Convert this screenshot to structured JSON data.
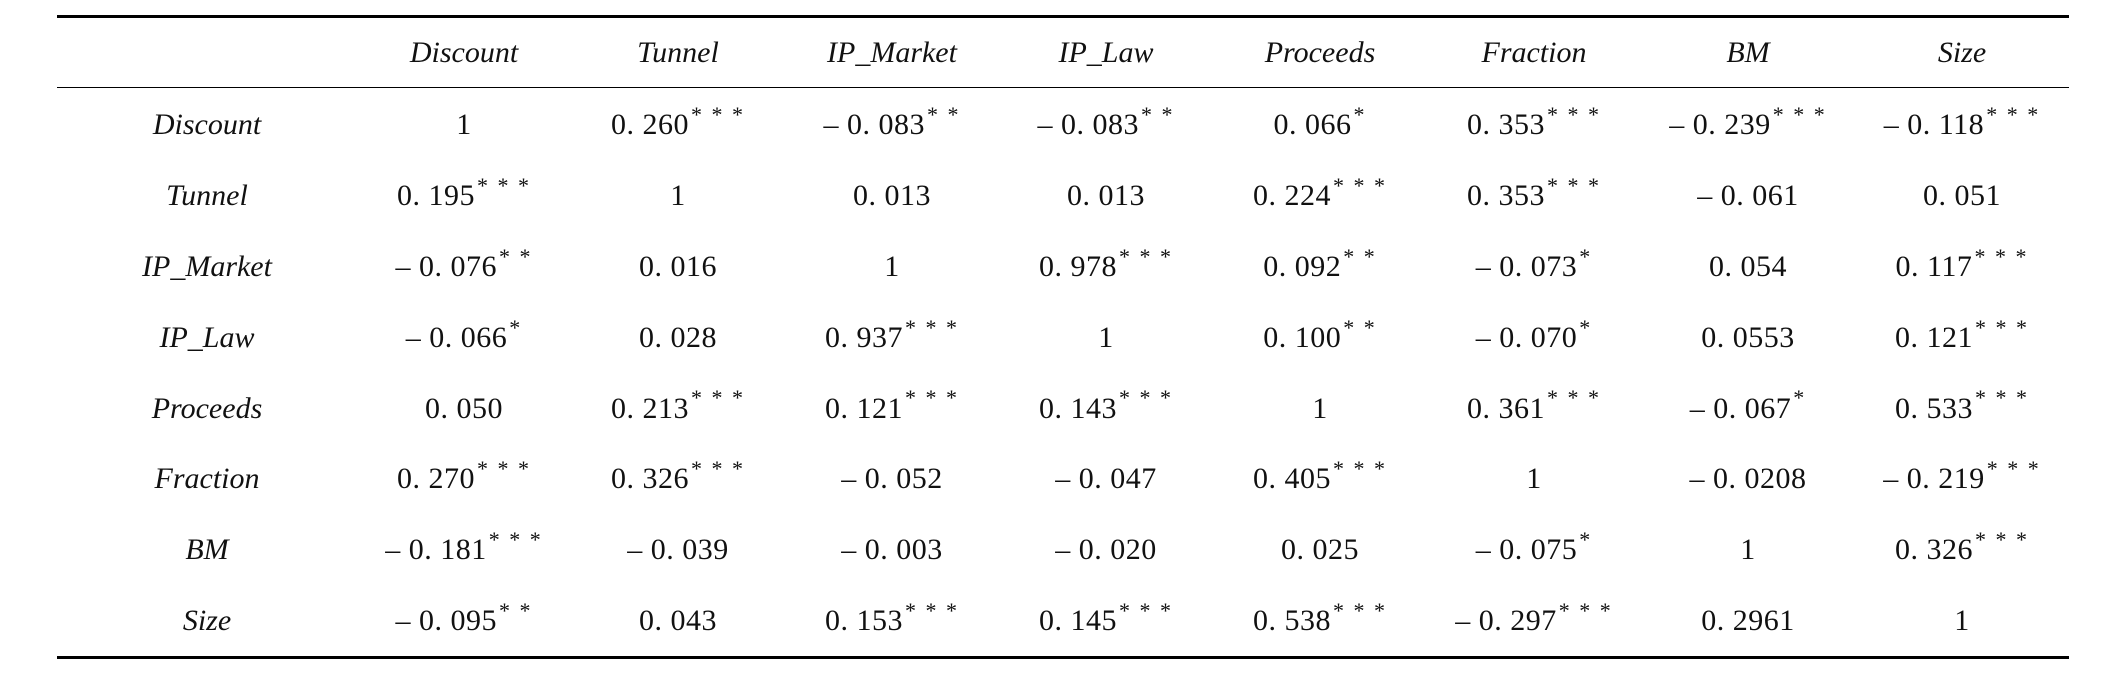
{
  "header": [
    "",
    "Discount",
    "Tunnel",
    "IP_Market",
    "IP_Law",
    "Proceeds",
    "Fraction",
    "BM",
    "Size"
  ],
  "rows": [
    {
      "label": "Discount",
      "cells": [
        {
          "v": "1",
          "s": ""
        },
        {
          "v": "0. 260",
          "s": "* * *"
        },
        {
          "v": "– 0. 083",
          "s": "* *"
        },
        {
          "v": "– 0. 083",
          "s": "* *"
        },
        {
          "v": "0. 066",
          "s": "*"
        },
        {
          "v": "0. 353",
          "s": "* * *"
        },
        {
          "v": "– 0. 239",
          "s": "* * *"
        },
        {
          "v": "– 0. 118",
          "s": "* * *"
        }
      ]
    },
    {
      "label": "Tunnel",
      "cells": [
        {
          "v": "0. 195",
          "s": "* * *"
        },
        {
          "v": "1",
          "s": ""
        },
        {
          "v": "0. 013",
          "s": ""
        },
        {
          "v": "0. 013",
          "s": ""
        },
        {
          "v": "0. 224",
          "s": "* * *"
        },
        {
          "v": "0. 353",
          "s": "* * *"
        },
        {
          "v": "– 0. 061",
          "s": ""
        },
        {
          "v": "0. 051",
          "s": ""
        }
      ]
    },
    {
      "label": "IP_Market",
      "cells": [
        {
          "v": "– 0. 076",
          "s": "* *"
        },
        {
          "v": "0. 016",
          "s": ""
        },
        {
          "v": "1",
          "s": ""
        },
        {
          "v": "0. 978",
          "s": "* * *"
        },
        {
          "v": "0. 092",
          "s": "* *"
        },
        {
          "v": "– 0. 073",
          "s": "*"
        },
        {
          "v": "0. 054",
          "s": ""
        },
        {
          "v": "0. 117",
          "s": "* * *"
        }
      ]
    },
    {
      "label": "IP_Law",
      "cells": [
        {
          "v": "– 0. 066",
          "s": "*"
        },
        {
          "v": "0. 028",
          "s": ""
        },
        {
          "v": "0. 937",
          "s": "* * *"
        },
        {
          "v": "1",
          "s": ""
        },
        {
          "v": "0. 100",
          "s": "* *"
        },
        {
          "v": "– 0. 070",
          "s": "*"
        },
        {
          "v": "0. 0553",
          "s": ""
        },
        {
          "v": "0. 121",
          "s": "* * *"
        }
      ]
    },
    {
      "label": "Proceeds",
      "cells": [
        {
          "v": "0. 050",
          "s": ""
        },
        {
          "v": "0. 213",
          "s": "* * *"
        },
        {
          "v": "0. 121",
          "s": "* * *"
        },
        {
          "v": "0. 143",
          "s": "* * *"
        },
        {
          "v": "1",
          "s": ""
        },
        {
          "v": "0. 361",
          "s": "* * *"
        },
        {
          "v": "– 0. 067",
          "s": "*"
        },
        {
          "v": "0. 533",
          "s": "* * *"
        }
      ]
    },
    {
      "label": "Fraction",
      "cells": [
        {
          "v": "0. 270",
          "s": "* * *"
        },
        {
          "v": "0. 326",
          "s": "* * *"
        },
        {
          "v": "– 0. 052",
          "s": ""
        },
        {
          "v": "– 0. 047",
          "s": ""
        },
        {
          "v": "0. 405",
          "s": "* * *"
        },
        {
          "v": "1",
          "s": ""
        },
        {
          "v": "– 0. 0208",
          "s": ""
        },
        {
          "v": "– 0. 219",
          "s": "* * *"
        }
      ]
    },
    {
      "label": "BM",
      "cells": [
        {
          "v": "– 0. 181",
          "s": "* * *"
        },
        {
          "v": "– 0. 039",
          "s": ""
        },
        {
          "v": "– 0. 003",
          "s": ""
        },
        {
          "v": "– 0. 020",
          "s": ""
        },
        {
          "v": "0. 025",
          "s": ""
        },
        {
          "v": "– 0. 075",
          "s": "*"
        },
        {
          "v": "1",
          "s": ""
        },
        {
          "v": "0. 326",
          "s": "* * *"
        }
      ]
    },
    {
      "label": "Size",
      "cells": [
        {
          "v": "– 0. 095",
          "s": "* *"
        },
        {
          "v": "0. 043",
          "s": ""
        },
        {
          "v": "0. 153",
          "s": "* * *"
        },
        {
          "v": "0. 145",
          "s": "* * *"
        },
        {
          "v": "0. 538",
          "s": "* * *"
        },
        {
          "v": "– 0. 297",
          "s": "* * *"
        },
        {
          "v": "0. 2961",
          "s": ""
        },
        {
          "v": "1",
          "s": ""
        }
      ]
    }
  ]
}
